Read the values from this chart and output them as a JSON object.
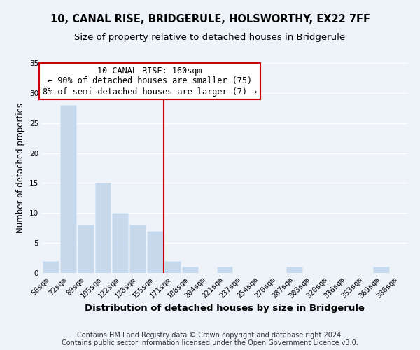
{
  "title1": "10, CANAL RISE, BRIDGERULE, HOLSWORTHY, EX22 7FF",
  "title2": "Size of property relative to detached houses in Bridgerule",
  "xlabel": "Distribution of detached houses by size in Bridgerule",
  "ylabel": "Number of detached properties",
  "bar_labels": [
    "56sqm",
    "72sqm",
    "89sqm",
    "105sqm",
    "122sqm",
    "138sqm",
    "155sqm",
    "171sqm",
    "188sqm",
    "204sqm",
    "221sqm",
    "237sqm",
    "254sqm",
    "270sqm",
    "287sqm",
    "303sqm",
    "320sqm",
    "336sqm",
    "353sqm",
    "369sqm",
    "386sqm"
  ],
  "bar_values": [
    2,
    28,
    8,
    15,
    10,
    8,
    7,
    2,
    1,
    0,
    1,
    0,
    0,
    0,
    1,
    0,
    0,
    0,
    0,
    1,
    0
  ],
  "bar_color": "#c6d9ec",
  "bar_edge_color": "#dde8f3",
  "red_line_x": 6.5,
  "red_line_color": "#cc0000",
  "annotation_text": "10 CANAL RISE: 160sqm\n← 90% of detached houses are smaller (75)\n8% of semi-detached houses are larger (7) →",
  "annotation_box_facecolor": "#ffffff",
  "annotation_box_edgecolor": "#cc0000",
  "ylim": [
    0,
    35
  ],
  "yticks": [
    0,
    5,
    10,
    15,
    20,
    25,
    30,
    35
  ],
  "footer1": "Contains HM Land Registry data © Crown copyright and database right 2024.",
  "footer2": "Contains public sector information licensed under the Open Government Licence v3.0.",
  "background_color": "#eef2f9",
  "grid_color": "#ffffff",
  "title1_fontsize": 10.5,
  "title2_fontsize": 9.5,
  "xlabel_fontsize": 9.5,
  "ylabel_fontsize": 8.5,
  "tick_fontsize": 7.5,
  "annotation_fontsize": 8.5,
  "footer_fontsize": 7.0
}
